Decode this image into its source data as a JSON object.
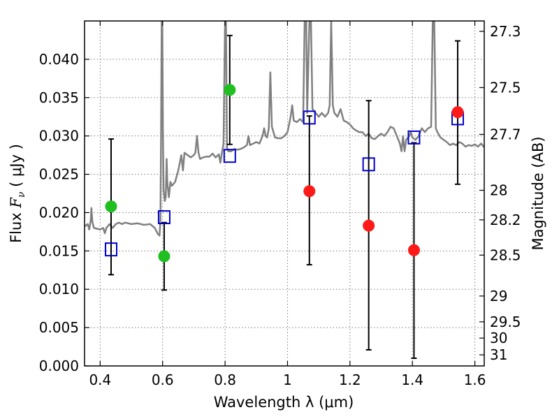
{
  "chart_data": {
    "type": "scatter",
    "xlabel": "Wavelength  λ (μm)",
    "ylabel_prefix": "Flux  ",
    "ylabel_symbol": "F",
    "ylabel_sub": "ν",
    "ylabel_suffix": "  ( μJy )",
    "y2label": "Magnitude (AB)",
    "xlim": [
      0.35,
      1.63
    ],
    "ylim": [
      0.0,
      0.045
    ],
    "grid": true,
    "x_ticks": [
      0.4,
      0.6,
      0.8,
      1.0,
      1.2,
      1.4,
      1.6
    ],
    "x_tick_labels": [
      "0.4",
      "0.6",
      "0.8",
      "1",
      "1.2",
      "1.4",
      "1.6"
    ],
    "y_ticks": [
      0.0,
      0.005,
      0.01,
      0.015,
      0.02,
      0.025,
      0.03,
      0.035,
      0.04
    ],
    "y_tick_labels": [
      "0.000",
      "0.005",
      "0.010",
      "0.015",
      "0.020",
      "0.025",
      "0.030",
      "0.035",
      "0.040"
    ],
    "y2_tick_labels": [
      {
        "label": "27.3",
        "mag": 27.3
      },
      {
        "label": "27.5",
        "mag": 27.5
      },
      {
        "label": "27.7",
        "mag": 27.7
      },
      {
        "label": "28",
        "mag": 28.0
      },
      {
        "label": "28.2",
        "mag": 28.2
      },
      {
        "label": "28.5",
        "mag": 28.5
      },
      {
        "label": "29",
        "mag": 29.0
      },
      {
        "label": "29.5",
        "mag": 29.5
      },
      {
        "label": "30",
        "mag": 30.0
      },
      {
        "label": "31",
        "mag": 31.0
      }
    ],
    "colors": {
      "spectrum": "#808080",
      "green": "#1fbf1f",
      "red": "#ff1a1a",
      "model": "#0000cc",
      "errorbar": "#000000",
      "grid": "#7a7a7a"
    },
    "series": [
      {
        "marker": "square",
        "color": "#0000cc",
        "points": [
          {
            "x": 0.435,
            "y": 0.0152
          },
          {
            "x": 0.605,
            "y": 0.0194
          },
          {
            "x": 0.815,
            "y": 0.0274
          },
          {
            "x": 1.07,
            "y": 0.0324
          },
          {
            "x": 1.26,
            "y": 0.0263
          },
          {
            "x": 1.405,
            "y": 0.0298
          },
          {
            "x": 1.545,
            "y": 0.0323
          }
        ]
      },
      {
        "marker": "circle",
        "color": "#1fbf1f",
        "points": [
          {
            "x": 0.435,
            "y": 0.0208,
            "ylo": 0.0119,
            "yhi": 0.0296
          },
          {
            "x": 0.605,
            "y": 0.0143,
            "ylo": 0.0099,
            "yhi": 0.0187
          },
          {
            "x": 0.815,
            "y": 0.036,
            "ylo": 0.0289,
            "yhi": 0.0431
          }
        ]
      },
      {
        "marker": "circle",
        "color": "#ff1a1a",
        "points": [
          {
            "x": 1.07,
            "y": 0.0228,
            "ylo": 0.0132,
            "yhi": 0.0326
          },
          {
            "x": 1.26,
            "y": 0.0183,
            "ylo": 0.0021,
            "yhi": 0.0346
          },
          {
            "x": 1.405,
            "y": 0.0151,
            "ylo": 0.001,
            "yhi": 0.0291
          },
          {
            "x": 1.545,
            "y": 0.0331,
            "ylo": 0.0237,
            "yhi": 0.0424
          }
        ]
      }
    ],
    "spectrum": [
      [
        0.35,
        0.0182
      ],
      [
        0.36,
        0.0185
      ],
      [
        0.365,
        0.0178
      ],
      [
        0.37,
        0.019
      ],
      [
        0.372,
        0.0206
      ],
      [
        0.375,
        0.0188
      ],
      [
        0.38,
        0.018
      ],
      [
        0.39,
        0.0179
      ],
      [
        0.4,
        0.0178
      ],
      [
        0.41,
        0.018
      ],
      [
        0.415,
        0.0173
      ],
      [
        0.42,
        0.018
      ],
      [
        0.43,
        0.0185
      ],
      [
        0.44,
        0.018
      ],
      [
        0.45,
        0.0185
      ],
      [
        0.46,
        0.0187
      ],
      [
        0.47,
        0.0185
      ],
      [
        0.48,
        0.0187
      ],
      [
        0.5,
        0.0185
      ],
      [
        0.52,
        0.0186
      ],
      [
        0.54,
        0.0184
      ],
      [
        0.56,
        0.0185
      ],
      [
        0.575,
        0.018
      ],
      [
        0.585,
        0.0172
      ],
      [
        0.59,
        0.017
      ],
      [
        0.593,
        0.019
      ],
      [
        0.595,
        0.03
      ],
      [
        0.597,
        0.045
      ],
      [
        0.599,
        0.045
      ],
      [
        0.601,
        0.03
      ],
      [
        0.603,
        0.023
      ],
      [
        0.607,
        0.0215
      ],
      [
        0.61,
        0.022
      ],
      [
        0.613,
        0.027
      ],
      [
        0.615,
        0.024
      ],
      [
        0.62,
        0.022
      ],
      [
        0.625,
        0.024
      ],
      [
        0.63,
        0.0235
      ],
      [
        0.64,
        0.024
      ],
      [
        0.65,
        0.0255
      ],
      [
        0.66,
        0.0275
      ],
      [
        0.665,
        0.0255
      ],
      [
        0.67,
        0.0278
      ],
      [
        0.68,
        0.0275
      ],
      [
        0.69,
        0.0272
      ],
      [
        0.7,
        0.0275
      ],
      [
        0.705,
        0.0278
      ],
      [
        0.71,
        0.03
      ],
      [
        0.715,
        0.0278
      ],
      [
        0.72,
        0.027
      ],
      [
        0.73,
        0.0272
      ],
      [
        0.74,
        0.0273
      ],
      [
        0.75,
        0.0273
      ],
      [
        0.76,
        0.0277
      ],
      [
        0.77,
        0.0272
      ],
      [
        0.78,
        0.0276
      ],
      [
        0.785,
        0.0265
      ],
      [
        0.79,
        0.0278
      ],
      [
        0.795,
        0.029
      ],
      [
        0.8,
        0.045
      ],
      [
        0.803,
        0.045
      ],
      [
        0.806,
        0.0285
      ],
      [
        0.81,
        0.028
      ],
      [
        0.82,
        0.028
      ],
      [
        0.83,
        0.0283
      ],
      [
        0.84,
        0.0282
      ],
      [
        0.85,
        0.0283
      ],
      [
        0.86,
        0.0285
      ],
      [
        0.87,
        0.0288
      ],
      [
        0.875,
        0.03
      ],
      [
        0.88,
        0.0288
      ],
      [
        0.89,
        0.029
      ],
      [
        0.9,
        0.0292
      ],
      [
        0.91,
        0.029
      ],
      [
        0.92,
        0.03
      ],
      [
        0.925,
        0.031
      ],
      [
        0.93,
        0.03
      ],
      [
        0.935,
        0.0298
      ],
      [
        0.94,
        0.031
      ],
      [
        0.945,
        0.0383
      ],
      [
        0.95,
        0.0312
      ],
      [
        0.96,
        0.0298
      ],
      [
        0.97,
        0.0297
      ],
      [
        0.98,
        0.0297
      ],
      [
        0.99,
        0.03
      ],
      [
        1.0,
        0.0305
      ],
      [
        1.01,
        0.0325
      ],
      [
        1.015,
        0.034
      ],
      [
        1.02,
        0.032
      ],
      [
        1.03,
        0.0318
      ],
      [
        1.04,
        0.0322
      ],
      [
        1.05,
        0.0318
      ],
      [
        1.055,
        0.045
      ],
      [
        1.06,
        0.045
      ],
      [
        1.063,
        0.033
      ],
      [
        1.07,
        0.045
      ],
      [
        1.075,
        0.045
      ],
      [
        1.08,
        0.0335
      ],
      [
        1.09,
        0.033
      ],
      [
        1.1,
        0.0325
      ],
      [
        1.11,
        0.033
      ],
      [
        1.12,
        0.0325
      ],
      [
        1.13,
        0.033
      ],
      [
        1.135,
        0.034
      ],
      [
        1.14,
        0.045
      ],
      [
        1.145,
        0.034
      ],
      [
        1.15,
        0.033
      ],
      [
        1.16,
        0.0325
      ],
      [
        1.17,
        0.0335
      ],
      [
        1.18,
        0.032
      ],
      [
        1.19,
        0.0318
      ],
      [
        1.2,
        0.0315
      ],
      [
        1.21,
        0.031
      ],
      [
        1.22,
        0.0307
      ],
      [
        1.23,
        0.0305
      ],
      [
        1.24,
        0.0305
      ],
      [
        1.25,
        0.03
      ],
      [
        1.26,
        0.0303
      ],
      [
        1.27,
        0.0297
      ],
      [
        1.28,
        0.0296
      ],
      [
        1.29,
        0.03
      ],
      [
        1.3,
        0.0303
      ],
      [
        1.31,
        0.03
      ],
      [
        1.32,
        0.0305
      ],
      [
        1.33,
        0.0312
      ],
      [
        1.34,
        0.031
      ],
      [
        1.35,
        0.03
      ],
      [
        1.36,
        0.029
      ],
      [
        1.365,
        0.028
      ],
      [
        1.37,
        0.03
      ],
      [
        1.375,
        0.028
      ],
      [
        1.38,
        0.0295
      ],
      [
        1.39,
        0.03
      ],
      [
        1.395,
        0.0305
      ],
      [
        1.4,
        0.0298
      ],
      [
        1.41,
        0.0295
      ],
      [
        1.42,
        0.03
      ],
      [
        1.43,
        0.031
      ],
      [
        1.44,
        0.0305
      ],
      [
        1.45,
        0.031
      ],
      [
        1.46,
        0.0312
      ],
      [
        1.465,
        0.045
      ],
      [
        1.47,
        0.045
      ],
      [
        1.475,
        0.031
      ],
      [
        1.48,
        0.0305
      ],
      [
        1.49,
        0.0298
      ],
      [
        1.5,
        0.0295
      ],
      [
        1.51,
        0.0292
      ],
      [
        1.52,
        0.0288
      ],
      [
        1.53,
        0.029
      ],
      [
        1.54,
        0.0288
      ],
      [
        1.55,
        0.0292
      ],
      [
        1.56,
        0.029
      ],
      [
        1.57,
        0.0286
      ],
      [
        1.58,
        0.0288
      ],
      [
        1.59,
        0.0287
      ],
      [
        1.6,
        0.0289
      ],
      [
        1.61,
        0.0286
      ],
      [
        1.62,
        0.029
      ],
      [
        1.63,
        0.0285
      ]
    ]
  }
}
